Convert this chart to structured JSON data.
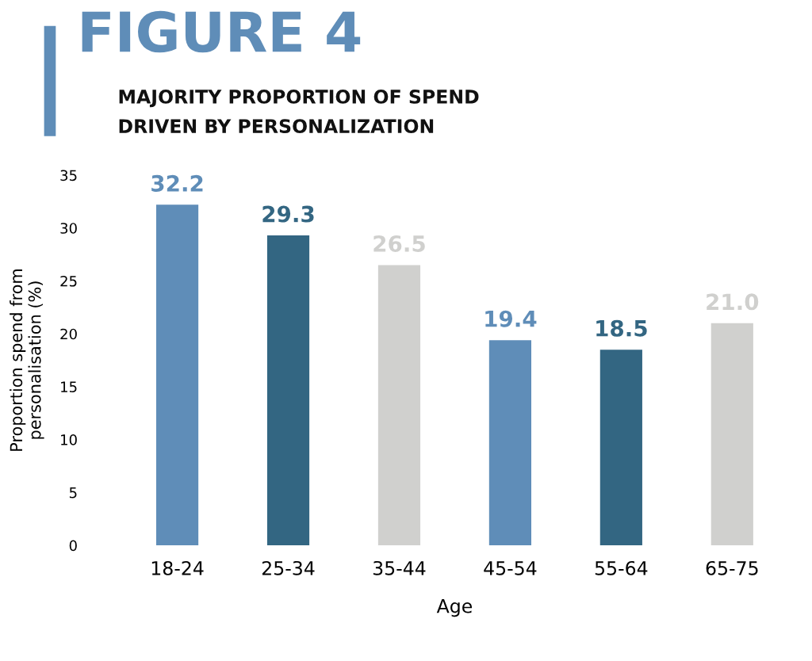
{
  "chart_data": {
    "type": "bar",
    "title": "FIGURE 4",
    "subtitle": "MAJORITY PROPORTION OF SPEND\nDRIVEN BY PERSONALIZATION",
    "xlabel": "Age",
    "ylabel": "Proportion spend from\npersonalisation (%)",
    "categories": [
      "18-24",
      "25-34",
      "35-44",
      "45-54",
      "55-64",
      "65-75"
    ],
    "values": [
      32.2,
      29.3,
      26.5,
      19.4,
      18.5,
      21.0
    ],
    "colors": [
      "#5f8db8",
      "#336682",
      "#d0d0ce",
      "#5f8db8",
      "#336682",
      "#d0d0ce"
    ],
    "ylim": [
      0,
      35
    ],
    "yticks": [
      0,
      5,
      10,
      15,
      20,
      25,
      30,
      35
    ],
    "value_labels": [
      "32.2",
      "29.3",
      "26.5",
      "19.4",
      "18.5",
      "21.0"
    ],
    "grid": false,
    "legend": false
  }
}
